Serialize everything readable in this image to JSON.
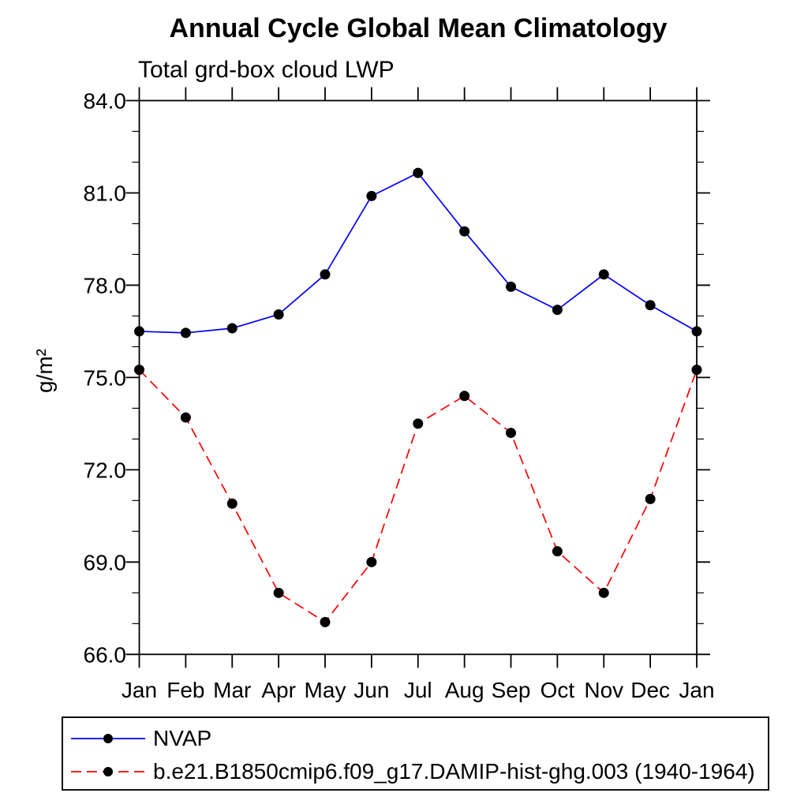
{
  "chart_data": {
    "type": "line",
    "title": "Annual Cycle Global Mean Climatology",
    "subtitle": "Total grd-box cloud LWP",
    "ylabel": "g/m²",
    "xlabel": "",
    "categories": [
      "Jan",
      "Feb",
      "Mar",
      "Apr",
      "May",
      "Jun",
      "Jul",
      "Aug",
      "Sep",
      "Oct",
      "Nov",
      "Dec",
      "Jan"
    ],
    "ylim": [
      66,
      84
    ],
    "ytick_interval": 3,
    "yminor_interval": 1,
    "ytick_labels": [
      "66.0",
      "69.0",
      "72.0",
      "75.0",
      "78.0",
      "81.0",
      "84.0"
    ],
    "grid": false,
    "legend_position": "bottom",
    "series": [
      {
        "name": "NVAP",
        "color": "#0000ff",
        "line_style": "solid",
        "marker": "circle",
        "marker_color": "#000000",
        "values": [
          76.5,
          76.45,
          76.6,
          77.05,
          78.35,
          80.9,
          81.65,
          79.75,
          77.95,
          77.2,
          78.35,
          77.35,
          76.5
        ]
      },
      {
        "name": "b.e21.B1850cmip6.f09_g17.DAMIP-hist-ghg.003 (1940-1964)",
        "color": "#ff0000",
        "line_style": "dashed",
        "marker": "circle",
        "marker_color": "#000000",
        "values": [
          75.25,
          73.7,
          70.9,
          68.0,
          67.05,
          69.0,
          73.5,
          74.4,
          73.2,
          69.35,
          68.0,
          71.05,
          75.25
        ]
      }
    ]
  }
}
